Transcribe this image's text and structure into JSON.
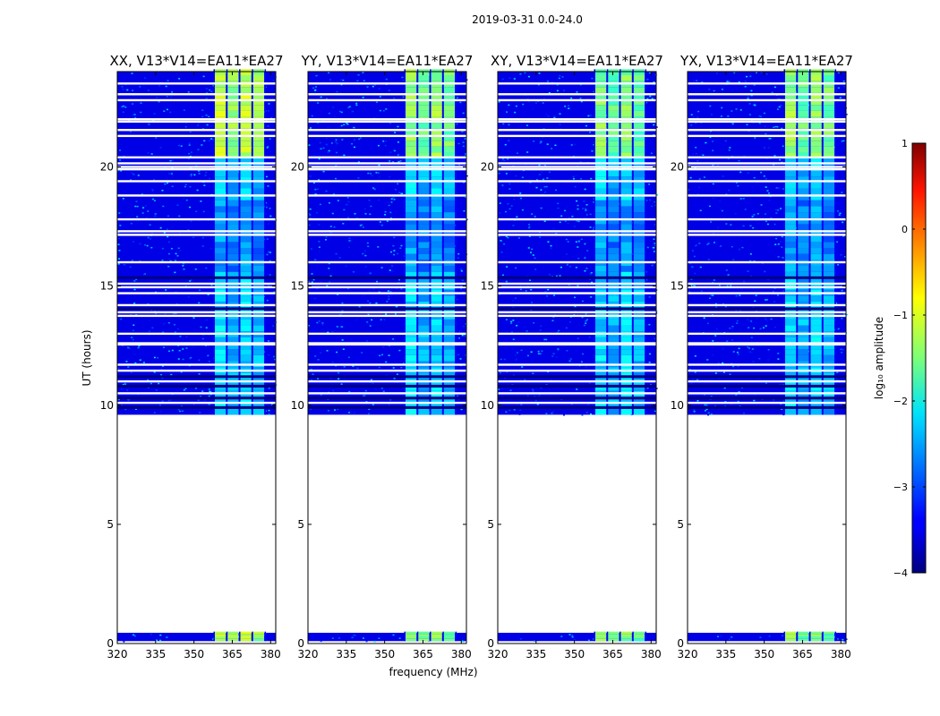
{
  "figure": {
    "suptitle": "2019-03-31 0.0-24.0",
    "xlabel": "frequency (MHz)",
    "ylabel": "UT (hours)"
  },
  "chart_data": {
    "type": "heatmap",
    "panels": [
      {
        "title": "XX, V13*V14=EA11*EA27",
        "band_level": -1.2
      },
      {
        "title": "YY, V13*V14=EA11*EA27",
        "band_level": -1.4
      },
      {
        "title": "XY, V13*V14=EA11*EA27",
        "band_level": -1.5
      },
      {
        "title": "YX, V13*V14=EA11*EA27",
        "band_level": -1.4
      }
    ],
    "xlim": [
      320,
      382
    ],
    "ylim": [
      0,
      24
    ],
    "xticks": [
      320,
      335,
      350,
      365,
      380
    ],
    "xtick_labels": [
      "320",
      "335",
      "350",
      "365",
      "380"
    ],
    "yticks": [
      0,
      5,
      10,
      15,
      20
    ],
    "ytick_labels": [
      "0",
      "5",
      "10",
      "15",
      "20"
    ],
    "data_ranges_hours": [
      [
        0.1,
        0.45
      ],
      [
        9.6,
        24.0
      ]
    ],
    "rfi_band_mhz": [
      358,
      378
    ],
    "rfi_channels_mhz": [
      358,
      363,
      368,
      373,
      378
    ],
    "background_level": -3.5,
    "band_level_daytime": -2.3,
    "colorbar": {
      "label": "log₁₀ amplitude",
      "range": [
        -4,
        1
      ],
      "ticks": [
        1,
        0,
        -1,
        -2,
        -3,
        -4
      ],
      "tick_labels": [
        "1",
        "0",
        "−1",
        "−2",
        "−3",
        "−4"
      ],
      "colormap": "jet"
    }
  }
}
